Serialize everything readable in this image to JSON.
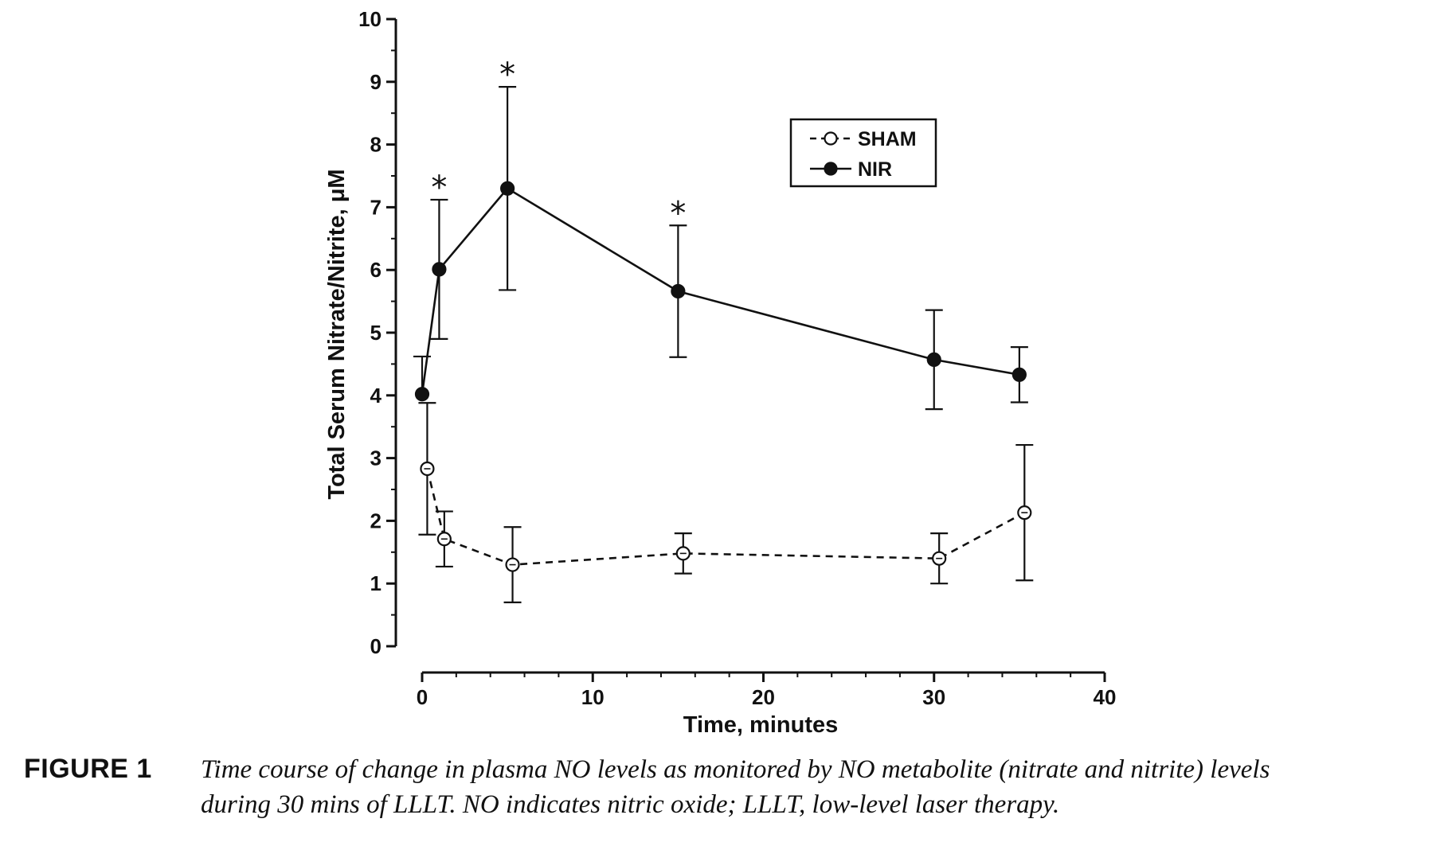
{
  "chart_data": {
    "type": "line",
    "title": "",
    "xlabel": "Time, minutes",
    "ylabel": "Total Serum Nitrate/Nitrite, μM",
    "xlim": [
      0,
      40
    ],
    "ylim": [
      0,
      10
    ],
    "x_ticks": [
      0,
      10,
      20,
      30,
      40
    ],
    "y_ticks": [
      0,
      1,
      2,
      3,
      4,
      5,
      6,
      7,
      8,
      9,
      10
    ],
    "grid": false,
    "legend_position": "top-right",
    "series": [
      {
        "name": "SHAM",
        "marker": "open-circle",
        "line_style": "dashed",
        "x": [
          0.3,
          1.3,
          5.3,
          15.3,
          30.3,
          35.3
        ],
        "y": [
          2.83,
          1.71,
          1.3,
          1.48,
          1.4,
          2.13
        ],
        "error": [
          1.05,
          0.44,
          0.6,
          0.32,
          0.4,
          1.08
        ],
        "error_direction": [
          "both",
          "both",
          "both",
          "both",
          "both",
          "both"
        ]
      },
      {
        "name": "NIR",
        "marker": "filled-circle",
        "line_style": "solid",
        "x": [
          0,
          1,
          5,
          15,
          30,
          35
        ],
        "y": [
          4.02,
          6.01,
          7.3,
          5.66,
          4.57,
          4.33
        ],
        "error": [
          0.6,
          1.11,
          1.62,
          1.05,
          0.79,
          0.44
        ],
        "error_direction": [
          "up",
          "both",
          "both",
          "both",
          "both",
          "both"
        ],
        "significant": [
          false,
          true,
          true,
          true,
          false,
          false
        ]
      }
    ],
    "annotations": {
      "significance_marker": "*"
    }
  },
  "caption": {
    "label": "FIGURE 1",
    "text_line1": "Time course of change in plasma NO levels as monitored by NO metabolite (nitrate and nitrite) levels",
    "text_line2": "during 30 mins of LLLT. NO indicates nitric oxide; LLLT, low-level laser therapy."
  }
}
